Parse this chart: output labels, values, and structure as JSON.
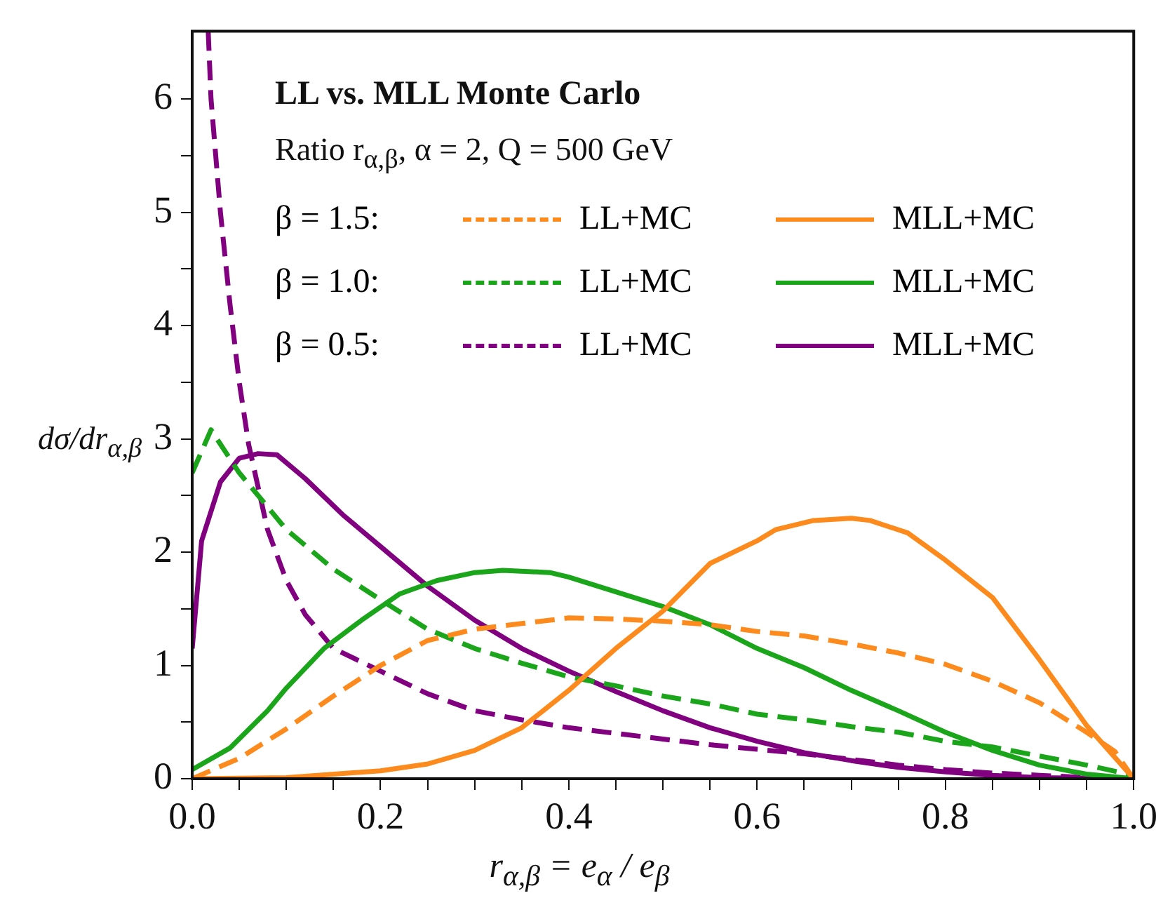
{
  "chart_data": {
    "type": "line",
    "title": "LL vs. MLL Monte Carlo",
    "subtitle": "Ratio r$_{α,β}$, α = 2, Q = 500 GeV",
    "xlabel": "r$_{α,β}$ = e$_{α}$ / e$_{β}$",
    "ylabel": "dσ/dr$_{α,β}$",
    "annotations": [
      "β = 1.5:",
      "β = 1.0:",
      "β = 0.5:"
    ],
    "legend": "top",
    "grid": false,
    "marker": "none",
    "xlim": [
      0,
      1
    ],
    "ylim": [
      0,
      6.6
    ],
    "xticks": [
      {
        "value": 0,
        "label": "0.0"
      },
      {
        "value": 0.05,
        "label": null
      },
      {
        "value": 0.1,
        "label": null
      },
      {
        "value": 0.15,
        "label": null
      },
      {
        "value": 0.2,
        "label": "0.2"
      },
      {
        "value": 0.25,
        "label": null
      },
      {
        "value": 0.3,
        "label": null
      },
      {
        "value": 0.35,
        "label": null
      },
      {
        "value": 0.4,
        "label": "0.4"
      },
      {
        "value": 0.45,
        "label": null
      },
      {
        "value": 0.5,
        "label": null
      },
      {
        "value": 0.55,
        "label": null
      },
      {
        "value": 0.6,
        "label": "0.6"
      },
      {
        "value": 0.65,
        "label": null
      },
      {
        "value": 0.7,
        "label": null
      },
      {
        "value": 0.75,
        "label": null
      },
      {
        "value": 0.8,
        "label": "0.8"
      },
      {
        "value": 0.85,
        "label": null
      },
      {
        "value": 0.9,
        "label": null
      },
      {
        "value": 0.95,
        "label": null
      },
      {
        "value": 1,
        "label": "1.0"
      }
    ],
    "yticks": [
      0,
      {
        "value": 0.5,
        "label": null
      },
      1,
      {
        "value": 1.5,
        "label": null
      },
      2,
      {
        "value": 2.5,
        "label": null
      },
      3,
      {
        "value": 3.5,
        "label": null
      },
      4,
      {
        "value": 4.5,
        "label": null
      },
      5,
      {
        "value": 5.5,
        "label": null
      },
      6
    ],
    "series": [
      {
        "name": "LL+MC",
        "color": "#fd8a1c",
        "line_style": "dashed",
        "x": [
          0,
          0.05,
          0.1,
          0.15,
          0.2,
          0.25,
          0.3,
          0.35,
          0.4,
          0.45,
          0.5,
          0.55,
          0.6,
          0.65,
          0.7,
          0.75,
          0.8,
          0.85,
          0.9,
          0.95,
          0.98,
          1
        ],
        "values": [
          0,
          0.18,
          0.44,
          0.73,
          1.0,
          1.22,
          1.32,
          1.37,
          1.42,
          1.41,
          1.39,
          1.36,
          1.3,
          1.26,
          1.19,
          1.11,
          1.01,
          0.86,
          0.67,
          0.41,
          0.24,
          0
        ]
      },
      {
        "name": "MLL+MC",
        "color": "#fd8a1c",
        "line_style": "solid",
        "x": [
          0,
          0.1,
          0.2,
          0.25,
          0.3,
          0.35,
          0.4,
          0.45,
          0.5,
          0.55,
          0.6,
          0.62,
          0.66,
          0.7,
          0.72,
          0.76,
          0.8,
          0.85,
          0.9,
          0.95,
          1
        ],
        "values": [
          0,
          0.01,
          0.07,
          0.13,
          0.25,
          0.45,
          0.78,
          1.15,
          1.48,
          1.9,
          2.1,
          2.2,
          2.28,
          2.3,
          2.28,
          2.17,
          1.93,
          1.6,
          1.05,
          0.47,
          0
        ]
      },
      {
        "name": "LL+MC",
        "color": "#1ba51b",
        "line_style": "dashed",
        "x": [
          0,
          0.02,
          0.05,
          0.1,
          0.15,
          0.2,
          0.25,
          0.3,
          0.35,
          0.4,
          0.45,
          0.5,
          0.55,
          0.6,
          0.65,
          0.7,
          0.75,
          0.8,
          0.85,
          0.9,
          0.95,
          1
        ],
        "values": [
          2.7,
          3.08,
          2.7,
          2.2,
          1.85,
          1.58,
          1.32,
          1.15,
          1.02,
          0.9,
          0.82,
          0.73,
          0.66,
          0.57,
          0.52,
          0.46,
          0.41,
          0.33,
          0.28,
          0.2,
          0.12,
          0.03
        ]
      },
      {
        "name": "MLL+MC",
        "color": "#1ba51b",
        "line_style": "solid",
        "x": [
          0,
          0.04,
          0.08,
          0.1,
          0.14,
          0.18,
          0.22,
          0.26,
          0.3,
          0.33,
          0.38,
          0.4,
          0.45,
          0.5,
          0.55,
          0.6,
          0.65,
          0.7,
          0.75,
          0.8,
          0.85,
          0.9,
          0.95,
          1
        ],
        "values": [
          0.08,
          0.27,
          0.6,
          0.8,
          1.15,
          1.4,
          1.63,
          1.75,
          1.82,
          1.84,
          1.82,
          1.78,
          1.65,
          1.52,
          1.36,
          1.15,
          0.98,
          0.78,
          0.6,
          0.41,
          0.25,
          0.12,
          0.04,
          0
        ]
      },
      {
        "name": "LL+MC",
        "color": "#800080",
        "line_style": "dashed",
        "x": [
          0.017,
          0.02,
          0.03,
          0.04,
          0.05,
          0.06,
          0.08,
          0.1,
          0.12,
          0.15,
          0.2,
          0.25,
          0.3,
          0.35,
          0.4,
          0.45,
          0.5,
          0.55,
          0.6,
          0.65,
          0.7,
          0.75,
          0.8,
          0.85,
          0.9,
          0.95,
          1
        ],
        "values": [
          6.6,
          6.0,
          5.0,
          4.2,
          3.5,
          2.95,
          2.2,
          1.75,
          1.45,
          1.15,
          0.95,
          0.75,
          0.6,
          0.52,
          0.45,
          0.4,
          0.35,
          0.3,
          0.26,
          0.22,
          0.17,
          0.12,
          0.08,
          0.05,
          0.03,
          0.01,
          0
        ]
      },
      {
        "name": "MLL+MC",
        "color": "#800080",
        "line_style": "solid",
        "x": [
          0,
          0.01,
          0.03,
          0.05,
          0.07,
          0.09,
          0.12,
          0.16,
          0.2,
          0.25,
          0.3,
          0.35,
          0.4,
          0.45,
          0.5,
          0.55,
          0.6,
          0.65,
          0.7,
          0.75,
          0.8,
          0.85,
          0.9,
          1
        ],
        "values": [
          1.15,
          2.1,
          2.62,
          2.83,
          2.87,
          2.86,
          2.65,
          2.33,
          2.05,
          1.7,
          1.4,
          1.15,
          0.95,
          0.77,
          0.6,
          0.45,
          0.33,
          0.23,
          0.16,
          0.1,
          0.06,
          0.03,
          0.01,
          0
        ]
      }
    ]
  }
}
